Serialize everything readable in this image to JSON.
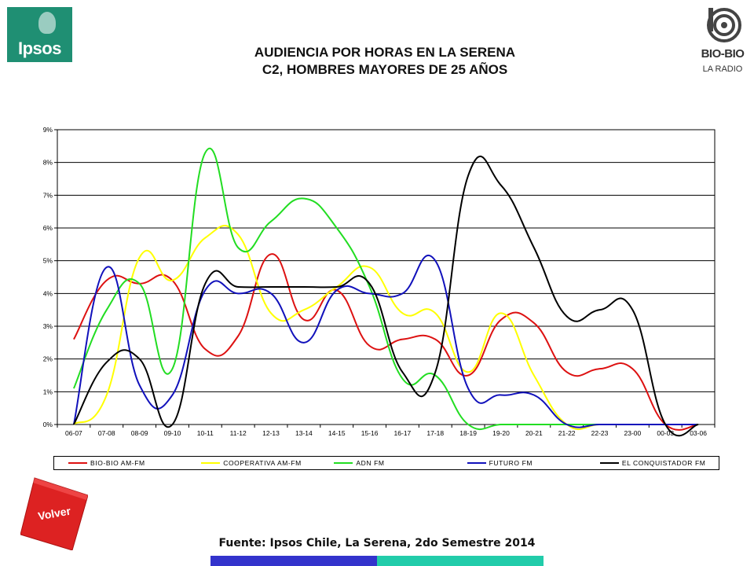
{
  "logos": {
    "left": {
      "text": "Ipsos"
    },
    "right": {
      "name": "BIO-BIO",
      "sub": "LA RADIO"
    }
  },
  "title_line1": "AUDIENCIA POR HORAS EN LA SERENA",
  "title_line2": "C2, HOMBRES MAYORES DE 25 AÑOS",
  "volver_label": "Volver",
  "source": "Fuente: Ipsos Chile, La Serena, 2do Semestre 2014",
  "colors": {
    "bar_left": "#3333cc",
    "bar_right": "#22ccaa",
    "volver": "#dd2222"
  },
  "chart_data": {
    "type": "line",
    "categories": [
      "06-07",
      "07-08",
      "08-09",
      "09-10",
      "10-11",
      "11-12",
      "12-13",
      "13-14",
      "14-15",
      "15-16",
      "16-17",
      "17-18",
      "18-19",
      "19-20",
      "20-21",
      "21-22",
      "22-23",
      "23-00",
      "00-03",
      "03-06"
    ],
    "y_ticks": [
      "0%",
      "1%",
      "2%",
      "3%",
      "4%",
      "5%",
      "6%",
      "7%",
      "8%",
      "9%"
    ],
    "ylim": [
      0,
      9
    ],
    "grid": true,
    "legend_position": "bottom",
    "series": [
      {
        "name": "BIO-BIO AM-FM",
        "color": "#dd1111",
        "values": [
          2.6,
          4.4,
          4.3,
          4.4,
          2.3,
          2.7,
          5.2,
          3.2,
          4.1,
          2.4,
          2.6,
          2.6,
          1.5,
          3.2,
          3.1,
          1.6,
          1.7,
          1.7,
          0.0,
          0.0
        ]
      },
      {
        "name": "COOPERATIVA AM-FM",
        "color": "#ffff00",
        "values": [
          0.0,
          0.9,
          5.1,
          4.4,
          5.7,
          5.8,
          3.4,
          3.5,
          4.2,
          4.8,
          3.4,
          3.4,
          1.6,
          3.4,
          1.5,
          0.0,
          0.0,
          0.0,
          0.0,
          0.0
        ]
      },
      {
        "name": "ADN FM",
        "color": "#22dd22",
        "values": [
          1.1,
          3.5,
          4.3,
          1.7,
          8.3,
          5.4,
          6.2,
          6.9,
          6.0,
          4.2,
          1.4,
          1.5,
          0.0,
          0.0,
          0.0,
          0.0,
          0.0,
          0.0,
          0.0,
          0.0
        ]
      },
      {
        "name": "FUTURO FM",
        "color": "#1111bb",
        "values": [
          0.0,
          4.8,
          1.2,
          0.9,
          4.1,
          4.0,
          4.0,
          2.5,
          4.1,
          4.0,
          4.0,
          5.0,
          1.1,
          0.9,
          0.9,
          0.0,
          0.0,
          0.0,
          0.0,
          0.0
        ]
      },
      {
        "name": "EL CONQUISTADOR FM",
        "color": "#000000",
        "values": [
          0.0,
          1.9,
          2.0,
          0.0,
          4.3,
          4.2,
          4.2,
          4.2,
          4.2,
          4.3,
          1.6,
          1.6,
          7.6,
          7.3,
          5.4,
          3.3,
          3.5,
          3.5,
          0.0,
          0.0
        ]
      }
    ]
  }
}
